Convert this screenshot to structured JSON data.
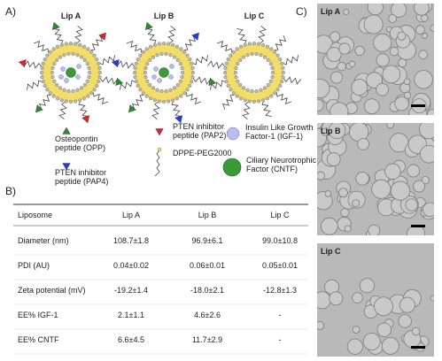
{
  "panel_a": {
    "label": "A)",
    "liposomes": [
      "Lip A",
      "Lip B",
      "Lip C"
    ],
    "legend": [
      {
        "lines": [
          "Osteopontin",
          "peptide (OPP)"
        ]
      },
      {
        "lines": [
          "PTEN inhibitor",
          "peptide (PAP2)"
        ]
      },
      {
        "lines": [
          "Insulin Like Growth",
          "Factor-1 (IGF-1)"
        ]
      },
      {
        "lines": [
          "PTEN inhibitor",
          "peptide (PAP4)"
        ]
      },
      {
        "lines": [
          "DPPE-PEG2000"
        ]
      },
      {
        "lines": [
          "Ciliary Neurotrophic",
          "Factor (CNTF)"
        ]
      }
    ]
  },
  "panel_b": {
    "label": "B)",
    "table": {
      "header": [
        "Liposome",
        "Lip A",
        "Lip B",
        "Lip C"
      ],
      "rows": [
        [
          "Diameter (nm)",
          "108.7±1.8",
          "96.9±6.1",
          "99.0±10.8"
        ],
        [
          "PDI (AU)",
          "0.04±0.02",
          "0.06±0.01",
          "0.05±0.01"
        ],
        [
          "Zeta potential (mV)",
          "-19.2±1.4",
          "-18.0±2.1",
          "-12.8±1.3"
        ],
        [
          "EE% IGF-1",
          "2.1±1.1",
          "4.6±2.6",
          "-"
        ],
        [
          "EE% CNTF",
          "6.6±4.5",
          "11.7±2.9",
          "-"
        ]
      ]
    }
  },
  "panel_c": {
    "label": "C)",
    "images": [
      "Lip A",
      "Lip B",
      "Lip C"
    ]
  }
}
